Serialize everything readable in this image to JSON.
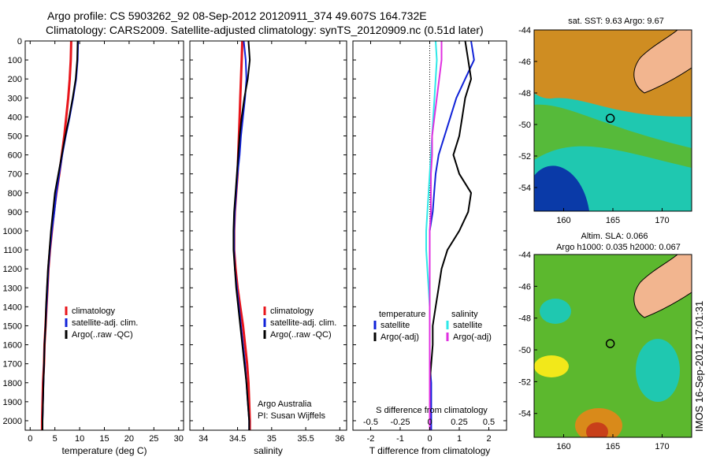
{
  "header": {
    "line1": "Argo profile: CS 5903262_92 08-Sep-2012 20120911_374 49.607S 164.732E",
    "line2": "Climatology: CARS2009. Satellite-adjusted climatology: synTS_20120909.nc (0.51d later)"
  },
  "side_stamp": "IMOS 16-Sep-2012 17:01:31",
  "colors": {
    "climatology": "#e8151b",
    "satellite": "#1022d8",
    "argo": "#000000",
    "s_satellite": "#2ee8e8",
    "s_argo": "#e030e0",
    "ocean_warm": "#d98a1a",
    "ocean_green": "#5cb82e",
    "ocean_cyan": "#1fc8b0",
    "ocean_blue": "#0a3aa8",
    "land": "#f2b58f"
  },
  "shared": {
    "depth_ticks": [
      "0",
      "100",
      "200",
      "300",
      "400",
      "500",
      "600",
      "700",
      "800",
      "900",
      "1000",
      "1100",
      "1200",
      "1300",
      "1400",
      "1500",
      "1600",
      "1700",
      "1800",
      "1900",
      "2000"
    ],
    "depth_range": [
      0,
      2050
    ]
  },
  "chart_data": [
    {
      "type": "line",
      "name": "temperature-profile",
      "xlabel": "temperature (deg C)",
      "xlim": [
        -1,
        31
      ],
      "xticks": [
        "0",
        "5",
        "10",
        "15",
        "20",
        "25",
        "30"
      ],
      "xtick_values": [
        0,
        5,
        10,
        15,
        20,
        25,
        30
      ],
      "depth": [
        0,
        100,
        200,
        300,
        400,
        500,
        600,
        700,
        800,
        900,
        1000,
        1100,
        1200,
        1300,
        1400,
        1500,
        1600,
        1700,
        1800,
        1900,
        2000,
        2050
      ],
      "series": [
        {
          "name": "climatology",
          "color_key": "climatology",
          "values": [
            8.3,
            8.2,
            8.0,
            7.7,
            7.3,
            6.9,
            6.4,
            5.9,
            5.3,
            4.8,
            4.4,
            4.0,
            3.7,
            3.5,
            3.3,
            3.1,
            2.9,
            2.8,
            2.6,
            2.5,
            2.4,
            2.4
          ]
        },
        {
          "name": "satellite-adj. clim.",
          "color_key": "satellite",
          "values": [
            9.7,
            9.6,
            9.3,
            8.7,
            8.0,
            7.2,
            6.5,
            5.9,
            5.3,
            4.9,
            4.4,
            4.0,
            3.7,
            3.5,
            3.3,
            3.1,
            2.9,
            2.8,
            2.7,
            2.6,
            2.5,
            2.5
          ]
        },
        {
          "name": "Argo(..raw -QC)",
          "color_key": "argo",
          "values": [
            9.6,
            9.5,
            9.2,
            8.6,
            7.9,
            7.1,
            6.4,
            5.7,
            5.0,
            4.6,
            4.2,
            3.9,
            3.6,
            3.4,
            3.2,
            3.1,
            2.9,
            2.8,
            2.7,
            2.6,
            2.5,
            2.5
          ]
        }
      ],
      "legend": [
        "climatology",
        "satellite-adj. clim.",
        "Argo(..raw -QC)"
      ],
      "legend_position": "lower-right"
    },
    {
      "type": "line",
      "name": "salinity-profile",
      "xlabel": "salinity",
      "xlim": [
        33.8,
        36.1
      ],
      "xticks": [
        "34",
        "34.5",
        "35",
        "35.5",
        "36"
      ],
      "xtick_values": [
        34,
        34.5,
        35,
        35.5,
        36
      ],
      "depth": [
        0,
        100,
        200,
        300,
        400,
        500,
        600,
        700,
        800,
        900,
        1000,
        1100,
        1200,
        1300,
        1400,
        1500,
        1600,
        1700,
        1800,
        1900,
        2000,
        2050
      ],
      "series": [
        {
          "name": "climatology",
          "color_key": "climatology",
          "values": [
            34.57,
            34.56,
            34.55,
            34.54,
            34.53,
            34.52,
            34.51,
            34.5,
            34.48,
            34.46,
            34.45,
            34.45,
            34.47,
            34.5,
            34.54,
            34.58,
            34.61,
            34.64,
            34.66,
            34.67,
            34.68,
            34.68
          ]
        },
        {
          "name": "satellite-adj. clim.",
          "color_key": "satellite",
          "values": [
            34.59,
            34.62,
            34.63,
            34.61,
            34.58,
            34.55,
            34.53,
            34.5,
            34.48,
            34.46,
            34.45,
            34.45,
            34.46,
            34.49,
            34.52,
            34.55,
            34.58,
            34.61,
            34.63,
            34.65,
            34.67,
            34.67
          ]
        },
        {
          "name": "Argo(..raw -QC)",
          "color_key": "argo",
          "values": [
            34.66,
            34.68,
            34.65,
            34.6,
            34.56,
            34.53,
            34.51,
            34.49,
            34.47,
            34.45,
            34.44,
            34.44,
            34.46,
            34.48,
            34.51,
            34.54,
            34.57,
            34.6,
            34.63,
            34.65,
            34.67,
            34.67
          ]
        }
      ],
      "legend": [
        "climatology",
        "satellite-adj. clim.",
        "Argo(..raw -QC)"
      ],
      "legend_position": "lower-right",
      "annotation": [
        "Argo Australia",
        "PI: Susan Wijffels"
      ]
    },
    {
      "type": "line",
      "name": "difference-profile",
      "xlabel": "T difference from climatology",
      "xlim": [
        -2.6,
        2.6
      ],
      "xticks": [
        "-2",
        "-1",
        "0",
        "1",
        "2"
      ],
      "xtick_values": [
        -2,
        -1,
        0,
        1,
        2
      ],
      "top_axis_label": "S difference from climatology",
      "top_ticks": [
        "-0.5",
        "-0.25",
        "0",
        "0.25",
        "0.5"
      ],
      "top_tick_values": [
        -0.5,
        -0.25,
        0,
        0.25,
        0.5
      ],
      "depth": [
        0,
        100,
        200,
        300,
        400,
        500,
        600,
        700,
        800,
        900,
        1000,
        1100,
        1200,
        1300,
        1400,
        1500,
        1600,
        1700,
        1800,
        1900,
        2000,
        2050
      ],
      "series": [
        {
          "name": "T satellite",
          "color_key": "satellite",
          "values": [
            1.4,
            1.5,
            1.2,
            0.9,
            0.7,
            0.5,
            0.3,
            0.2,
            0.15,
            0.1,
            0.0,
            0.0,
            0.0,
            0.0,
            0.0,
            0.0,
            0.0,
            0.0,
            0.05,
            0.05,
            0.05,
            0.05
          ]
        },
        {
          "name": "T Argo(-adj)",
          "color_key": "argo",
          "values": [
            1.2,
            1.3,
            1.4,
            1.2,
            1.1,
            1.0,
            0.8,
            1.0,
            1.4,
            1.3,
            1.0,
            0.6,
            0.4,
            0.3,
            0.2,
            0.1,
            0.1,
            0.05,
            0.0,
            0.0,
            0.0,
            0.0
          ]
        },
        {
          "name": "S satellite",
          "color_key": "s_satellite",
          "values": [
            0.05,
            0.06,
            0.05,
            0.04,
            0.03,
            0.02,
            0.01,
            0.0,
            -0.01,
            -0.02,
            -0.03,
            -0.03,
            -0.02,
            -0.01,
            0.0,
            0.0,
            0.0,
            0.0,
            0.0,
            0.0,
            0.0,
            0.0
          ]
        },
        {
          "name": "S Argo(-adj)",
          "color_key": "s_argo",
          "values": [
            0.1,
            0.1,
            0.08,
            0.06,
            0.04,
            0.02,
            0.02,
            0.01,
            0.01,
            0.01,
            0.0,
            0.0,
            0.0,
            0.0,
            0.0,
            0.0,
            0.0,
            0.0,
            0.0,
            0.0,
            0.0,
            0.0
          ]
        }
      ],
      "legend_groups": [
        {
          "title": "temperature",
          "items": [
            {
              "label": "satellite",
              "color_key": "satellite"
            },
            {
              "label": "Argo(-adj)",
              "color_key": "argo"
            }
          ]
        },
        {
          "title": "salinity",
          "items": [
            {
              "label": "satellite",
              "color_key": "s_satellite"
            },
            {
              "label": "Argo(-adj)",
              "color_key": "s_argo"
            }
          ]
        }
      ]
    },
    {
      "type": "heatmap",
      "name": "sst-map",
      "title": "sat. SST: 9.63 Argo: 9.67",
      "xlim": [
        157,
        173
      ],
      "ylim": [
        -55.5,
        -44
      ],
      "xticks": [
        "160",
        "165",
        "170"
      ],
      "xtick_values": [
        160,
        165,
        170
      ],
      "yticks": [
        "-44",
        "-46",
        "-48",
        "-50",
        "-52",
        "-54"
      ],
      "ytick_values": [
        -44,
        -46,
        -48,
        -50,
        -52,
        -54
      ],
      "float_position": {
        "lon": 164.732,
        "lat": -49.607
      },
      "sat_sst": 9.63,
      "argo_sst": 9.67
    },
    {
      "type": "heatmap",
      "name": "sla-map",
      "title": "Altim. SLA: 0.066",
      "subtitle": "Argo h1000: 0.035 h2000: 0.067",
      "xlim": [
        157,
        173
      ],
      "ylim": [
        -55.5,
        -44
      ],
      "xticks": [
        "160",
        "165",
        "170"
      ],
      "xtick_values": [
        160,
        165,
        170
      ],
      "yticks": [
        "-44",
        "-46",
        "-48",
        "-50",
        "-52",
        "-54"
      ],
      "ytick_values": [
        -44,
        -46,
        -48,
        -50,
        -52,
        -54
      ],
      "float_position": {
        "lon": 164.732,
        "lat": -49.607
      },
      "altim_sla": 0.066,
      "argo_h1000": 0.035,
      "argo_h2000": 0.067
    }
  ]
}
